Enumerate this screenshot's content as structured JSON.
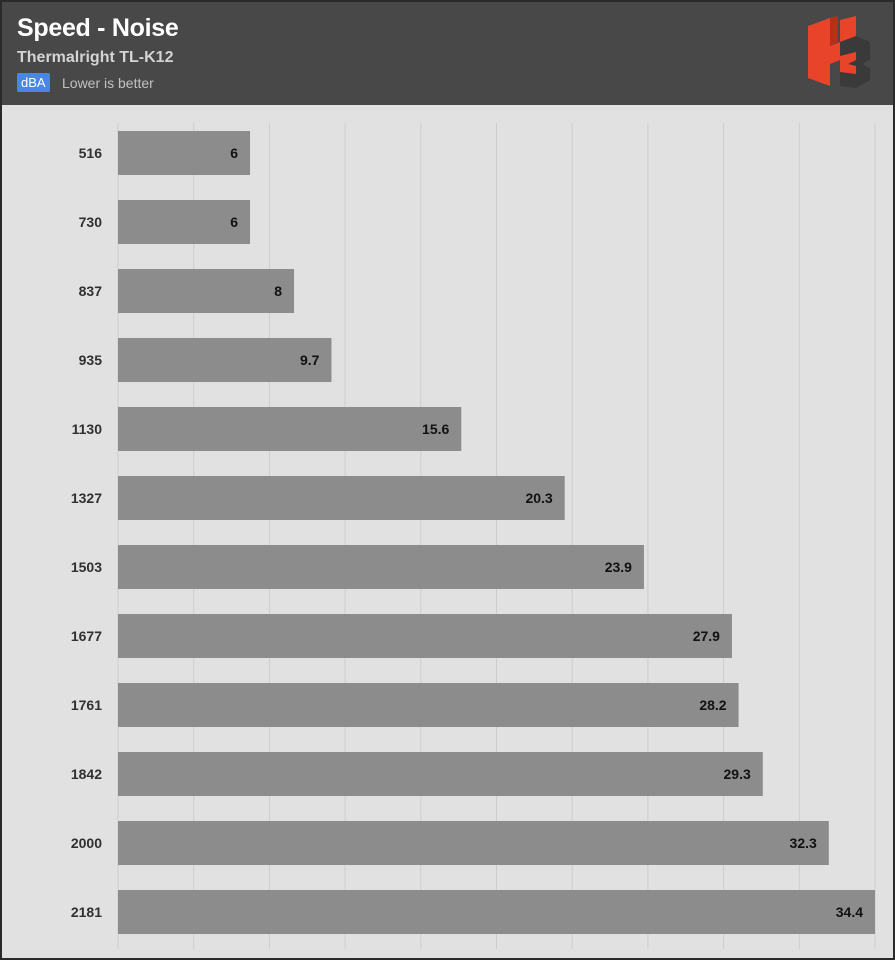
{
  "header": {
    "title": "Speed - Noise",
    "subtitle": "Thermalright TL-K12",
    "unit_badge": "dBA",
    "note": "Lower is better"
  },
  "colors": {
    "header_bg": "#484848",
    "plot_bg": "#e1e1e1",
    "bar": "#8c8c8c",
    "badge": "#4a86e8",
    "logo_red": "#e8442a",
    "logo_dark": "#3a3a3a"
  },
  "logo": {
    "icon": "hb-logo-icon"
  },
  "chart_data": {
    "type": "bar",
    "orientation": "horizontal",
    "categories": [
      "516",
      "730",
      "837",
      "935",
      "1130",
      "1327",
      "1503",
      "1677",
      "1761",
      "1842",
      "2000",
      "2181"
    ],
    "values": [
      6,
      6,
      8,
      9.7,
      15.6,
      20.3,
      23.9,
      27.9,
      28.2,
      29.3,
      32.3,
      34.4
    ],
    "value_labels": [
      "6",
      "6",
      "8",
      "9.7",
      "15.6",
      "20.3",
      "23.9",
      "27.9",
      "28.2",
      "29.3",
      "32.3",
      "34.4"
    ],
    "xlim": [
      0,
      34.4
    ],
    "grid": true,
    "grid_step": 3.44,
    "legend": "none"
  }
}
